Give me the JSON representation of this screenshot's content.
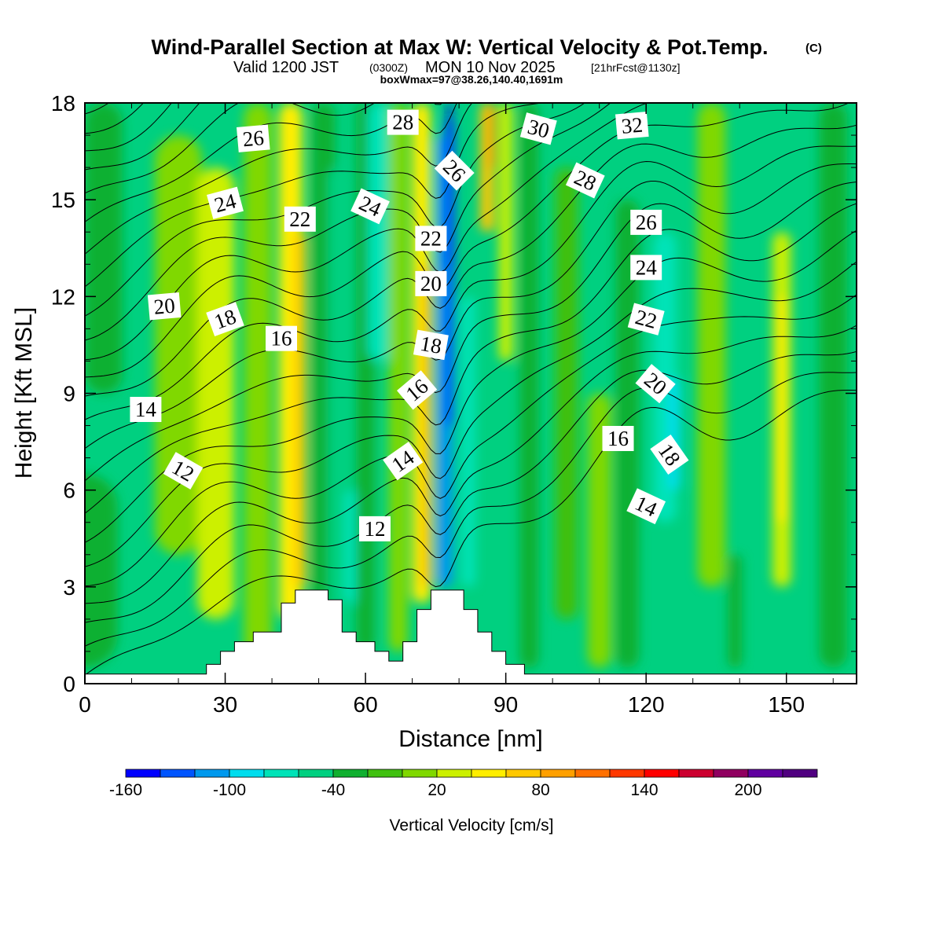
{
  "title": {
    "main": "Wind-Parallel Section at Max W: Vertical Velocity & Pot.Temp.",
    "copyright": "(C)",
    "valid_prefix": "Valid 1200 JST",
    "valid_z": "(0300Z)",
    "valid_date": "MON 10 Nov 2025",
    "forecast": "[21hrFcst@1130z]",
    "boxwmax": "boxWmax=97@38.26,140.40,1691m"
  },
  "chart_data": {
    "type": "heatmap",
    "xlabel": "Distance [nm]",
    "ylabel": "Height [Kft MSL]",
    "xlim": [
      0,
      165
    ],
    "ylim": [
      0,
      18
    ],
    "xticks": [
      0,
      30,
      60,
      90,
      120,
      150
    ],
    "yticks": [
      0,
      3,
      6,
      9,
      12,
      15,
      18
    ],
    "background_level": 5,
    "colorbar": {
      "label": "Vertical Velocity [cm/s]",
      "tick_labels": [
        "-160",
        "-100",
        "-40",
        "20",
        "80",
        "140",
        "200"
      ],
      "tick_values": [
        -160,
        -100,
        -40,
        20,
        80,
        140,
        200
      ],
      "min": -160,
      "max": 240,
      "step": 20,
      "colors": [
        "#0000ff",
        "#0055ff",
        "#0099ee",
        "#00ddee",
        "#00e3b8",
        "#00d080",
        "#10b030",
        "#40c010",
        "#80d800",
        "#ccf000",
        "#ffee00",
        "#ffc800",
        "#ffa000",
        "#ff7000",
        "#ff3800",
        "#ff0000",
        "#cc0030",
        "#900060",
        "#6000a0",
        "#500080"
      ]
    },
    "color_bands": [
      {
        "x": 0,
        "level": 6,
        "width": 14,
        "top": 0.5,
        "bottom": 6.5
      },
      {
        "x": 4,
        "level": 6,
        "width": 8,
        "top": 9,
        "bottom": 18
      },
      {
        "x": 20,
        "level": 8,
        "width": 10,
        "top": 4,
        "bottom": 17
      },
      {
        "x": 28,
        "level": 9,
        "width": 8,
        "top": 2,
        "bottom": 16
      },
      {
        "x": 37,
        "level": 8,
        "width": 6,
        "top": 0.5,
        "bottom": 18
      },
      {
        "x": 44,
        "level": 10,
        "width": 5,
        "top": 2,
        "bottom": 18
      },
      {
        "x": 46,
        "level": 11,
        "width": 2.5,
        "top": 3,
        "bottom": 14
      },
      {
        "x": 51,
        "level": 6,
        "width": 5,
        "top": 2.5,
        "bottom": 18
      },
      {
        "x": 54,
        "level": 5,
        "width": 4,
        "top": 2.5,
        "bottom": 16
      },
      {
        "x": 57,
        "level": 4,
        "width": 3,
        "top": 2.5,
        "bottom": 6
      },
      {
        "x": 60,
        "level": 6,
        "width": 4,
        "top": 1,
        "bottom": 18
      },
      {
        "x": 63,
        "level": 4,
        "width": 5,
        "top": 10,
        "bottom": 18
      },
      {
        "x": 67,
        "level": 8,
        "width": 4,
        "top": 1,
        "bottom": 18
      },
      {
        "x": 72,
        "level": 10,
        "width": 4,
        "top": 2.5,
        "bottom": 18
      },
      {
        "x": 73,
        "level": 11,
        "width": 2.5,
        "top": 3,
        "bottom": 13
      },
      {
        "x": 77,
        "level": 2,
        "width": 3.5,
        "top": 3,
        "bottom": 17
      },
      {
        "x": 78,
        "level": 1,
        "width": 2,
        "top": 8,
        "bottom": 17.5
      },
      {
        "x": 78,
        "level": 0,
        "width": 1,
        "top": 13,
        "bottom": 18
      },
      {
        "x": 82,
        "level": 4,
        "width": 3,
        "top": 3,
        "bottom": 12
      },
      {
        "x": 86,
        "level": 11,
        "width": 3,
        "top": 14,
        "bottom": 18
      },
      {
        "x": 87,
        "level": 12,
        "width": 1.5,
        "top": 16,
        "bottom": 18
      },
      {
        "x": 90,
        "level": 9,
        "width": 3,
        "top": 10,
        "bottom": 18
      },
      {
        "x": 95,
        "level": 6,
        "width": 4,
        "top": 0.5,
        "bottom": 18
      },
      {
        "x": 103,
        "level": 7,
        "width": 5,
        "top": 2,
        "bottom": 16
      },
      {
        "x": 110,
        "level": 8,
        "width": 5,
        "top": 0.5,
        "bottom": 9
      },
      {
        "x": 116,
        "level": 6,
        "width": 5,
        "top": 0.5,
        "bottom": 15
      },
      {
        "x": 124,
        "level": 4,
        "width": 5,
        "top": 5,
        "bottom": 14
      },
      {
        "x": 126,
        "level": 3,
        "width": 2.5,
        "top": 6,
        "bottom": 9.5
      },
      {
        "x": 134,
        "level": 8,
        "width": 6,
        "top": 3,
        "bottom": 18
      },
      {
        "x": 139,
        "level": 6,
        "width": 3,
        "top": 0.5,
        "bottom": 4
      },
      {
        "x": 149,
        "level": 9,
        "width": 4,
        "top": 3,
        "bottom": 14
      },
      {
        "x": 149,
        "level": 10,
        "width": 2,
        "top": 5,
        "bottom": 12
      },
      {
        "x": 160,
        "level": 6,
        "width": 6,
        "top": 0.5,
        "bottom": 18
      }
    ],
    "terrain": [
      [
        0,
        0.3
      ],
      [
        26,
        0.3
      ],
      [
        26,
        0.6
      ],
      [
        29,
        0.6
      ],
      [
        29,
        1.0
      ],
      [
        32,
        1.0
      ],
      [
        32,
        1.3
      ],
      [
        36,
        1.3
      ],
      [
        36,
        1.6
      ],
      [
        42,
        1.6
      ],
      [
        42,
        2.5
      ],
      [
        45,
        2.5
      ],
      [
        45,
        2.9
      ],
      [
        52,
        2.9
      ],
      [
        52,
        2.6
      ],
      [
        55,
        2.6
      ],
      [
        55,
        1.6
      ],
      [
        58,
        1.6
      ],
      [
        58,
        1.3
      ],
      [
        62,
        1.3
      ],
      [
        62,
        1.0
      ],
      [
        65,
        1.0
      ],
      [
        65,
        0.7
      ],
      [
        68,
        0.7
      ],
      [
        68,
        1.3
      ],
      [
        71,
        1.3
      ],
      [
        71,
        2.3
      ],
      [
        74,
        2.3
      ],
      [
        74,
        2.9
      ],
      [
        81,
        2.9
      ],
      [
        81,
        2.3
      ],
      [
        84,
        2.3
      ],
      [
        84,
        1.6
      ],
      [
        87,
        1.6
      ],
      [
        87,
        1.0
      ],
      [
        90,
        1.0
      ],
      [
        90,
        0.6
      ],
      [
        94,
        0.6
      ],
      [
        94,
        0.3
      ],
      [
        165,
        0.3
      ],
      [
        165,
        0
      ],
      [
        0,
        0
      ]
    ],
    "contours": {
      "variable": "Potential Temperature",
      "levels": [
        10,
        11,
        12,
        13,
        14,
        15,
        16,
        17,
        18,
        19,
        20,
        21,
        22,
        23,
        24,
        25,
        26,
        27,
        28,
        29,
        30,
        31,
        32,
        33,
        34
      ],
      "labels": [
        {
          "text": "12",
          "x": 21,
          "y": 6.6,
          "angle": 30
        },
        {
          "text": "12",
          "x": 62,
          "y": 4.8,
          "angle": 0
        },
        {
          "text": "14",
          "x": 13,
          "y": 8.5,
          "angle": 0
        },
        {
          "text": "14",
          "x": 68,
          "y": 6.9,
          "angle": -35
        },
        {
          "text": "14",
          "x": 120,
          "y": 5.5,
          "angle": 25
        },
        {
          "text": "16",
          "x": 42,
          "y": 10.7,
          "angle": 0
        },
        {
          "text": "16",
          "x": 71,
          "y": 9.1,
          "angle": -40
        },
        {
          "text": "16",
          "x": 114,
          "y": 7.6,
          "angle": 0
        },
        {
          "text": "18",
          "x": 30,
          "y": 11.3,
          "angle": -20
        },
        {
          "text": "18",
          "x": 74,
          "y": 10.5,
          "angle": 10
        },
        {
          "text": "18",
          "x": 125,
          "y": 7.1,
          "angle": 55
        },
        {
          "text": "20",
          "x": 17,
          "y": 11.7,
          "angle": -5
        },
        {
          "text": "20",
          "x": 74,
          "y": 12.4,
          "angle": 0
        },
        {
          "text": "20",
          "x": 122,
          "y": 9.3,
          "angle": 40
        },
        {
          "text": "22",
          "x": 46,
          "y": 14.4,
          "angle": 0
        },
        {
          "text": "22",
          "x": 74,
          "y": 13.8,
          "angle": 0
        },
        {
          "text": "22",
          "x": 120,
          "y": 11.3,
          "angle": 15
        },
        {
          "text": "24",
          "x": 30,
          "y": 14.9,
          "angle": -15
        },
        {
          "text": "24",
          "x": 61,
          "y": 14.8,
          "angle": 25
        },
        {
          "text": "24",
          "x": 120,
          "y": 12.9,
          "angle": 0
        },
        {
          "text": "26",
          "x": 36,
          "y": 16.9,
          "angle": -5
        },
        {
          "text": "26",
          "x": 79,
          "y": 15.9,
          "angle": 45
        },
        {
          "text": "26",
          "x": 120,
          "y": 14.3,
          "angle": 0
        },
        {
          "text": "28",
          "x": 68,
          "y": 17.4,
          "angle": 0
        },
        {
          "text": "28",
          "x": 107,
          "y": 15.6,
          "angle": 25
        },
        {
          "text": "30",
          "x": 97,
          "y": 17.2,
          "angle": 15
        },
        {
          "text": "32",
          "x": 117,
          "y": 17.3,
          "angle": -5
        }
      ]
    }
  }
}
